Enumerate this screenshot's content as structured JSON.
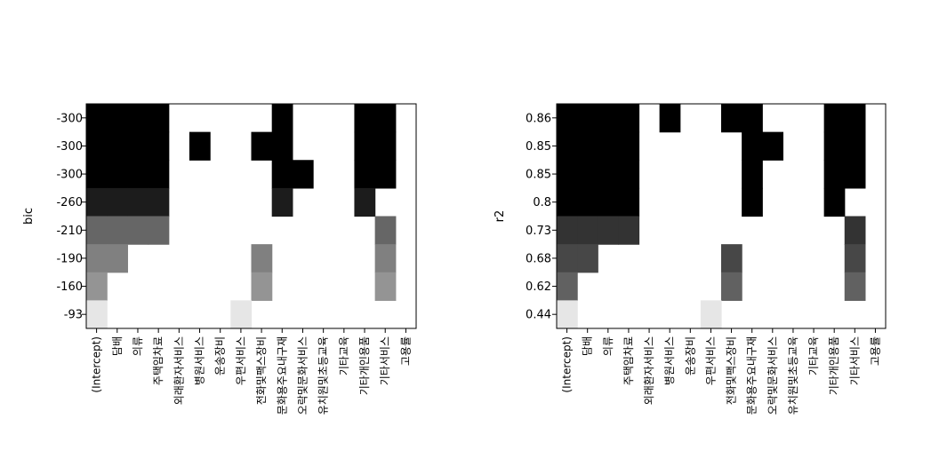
{
  "chart_data": [
    {
      "type": "heatmap",
      "ylabel": "bic",
      "categories": [
        "(Intercept)",
        "담배",
        "의류",
        "주택임차료",
        "외래환자서비스",
        "병원서비스",
        "운송장비",
        "우편서비스",
        "전화및팩스장비",
        "문화용주요내구재",
        "오락및문화서비스",
        "유치원및초등교육",
        "기타교육",
        "기타개인용품",
        "기타서비스",
        "고용률"
      ],
      "rows": [
        {
          "label": "-300",
          "cells": [
            1,
            1,
            1,
            1,
            0,
            0,
            0,
            0,
            0,
            1,
            0,
            0,
            0,
            1,
            1,
            0
          ]
        },
        {
          "label": "-300",
          "cells": [
            1,
            1,
            1,
            1,
            0,
            1,
            0,
            0,
            1,
            1,
            0,
            0,
            0,
            1,
            1,
            0
          ]
        },
        {
          "label": "-300",
          "cells": [
            1,
            1,
            1,
            1,
            0,
            0,
            0,
            0,
            0,
            1,
            1,
            0,
            0,
            1,
            1,
            0
          ]
        },
        {
          "label": "-260",
          "cells": [
            0.89,
            0.89,
            0.89,
            0.89,
            0,
            0,
            0,
            0,
            0,
            0.89,
            0,
            0,
            0,
            0.89,
            0,
            0
          ]
        },
        {
          "label": "-210",
          "cells": [
            0.6,
            0.6,
            0.6,
            0.6,
            0,
            0,
            0,
            0,
            0,
            0,
            0,
            0,
            0,
            0,
            0.6,
            0
          ]
        },
        {
          "label": "-190",
          "cells": [
            0.5,
            0.5,
            0,
            0,
            0,
            0,
            0,
            0,
            0.5,
            0,
            0,
            0,
            0,
            0,
            0.5,
            0
          ]
        },
        {
          "label": "-160",
          "cells": [
            0.42,
            0,
            0,
            0,
            0,
            0,
            0,
            0,
            0.42,
            0,
            0,
            0,
            0,
            0,
            0.42,
            0
          ]
        },
        {
          "label": "-93",
          "cells": [
            0.1,
            0,
            0,
            0,
            0,
            0,
            0,
            0.1,
            0,
            0,
            0,
            0,
            0,
            0,
            0,
            0
          ]
        }
      ]
    },
    {
      "type": "heatmap",
      "ylabel": "r2",
      "categories": [
        "(Intercept)",
        "담배",
        "의류",
        "주택임차료",
        "외래환자서비스",
        "병원서비스",
        "운송장비",
        "우편서비스",
        "전화및팩스장비",
        "문화용주요내구재",
        "오락및문화서비스",
        "유치원및초등교육",
        "기타교육",
        "기타개인용품",
        "기타서비스",
        "고용률"
      ],
      "rows": [
        {
          "label": "0.86",
          "cells": [
            1,
            1,
            1,
            1,
            0,
            1,
            0,
            0,
            1,
            1,
            0,
            0,
            0,
            1,
            1,
            0
          ]
        },
        {
          "label": "0.85",
          "cells": [
            1,
            1,
            1,
            1,
            0,
            0,
            0,
            0,
            0,
            1,
            1,
            0,
            0,
            1,
            1,
            0
          ]
        },
        {
          "label": "0.85",
          "cells": [
            1,
            1,
            1,
            1,
            0,
            0,
            0,
            0,
            0,
            1,
            0,
            0,
            0,
            1,
            1,
            0
          ]
        },
        {
          "label": "0.8",
          "cells": [
            1,
            1,
            1,
            1,
            0,
            0,
            0,
            0,
            0,
            1,
            0,
            0,
            0,
            1,
            0,
            0
          ]
        },
        {
          "label": "0.73",
          "cells": [
            0.8,
            0.8,
            0.8,
            0.8,
            0,
            0,
            0,
            0,
            0,
            0,
            0,
            0,
            0,
            0,
            0.8,
            0
          ]
        },
        {
          "label": "0.68",
          "cells": [
            0.72,
            0.72,
            0,
            0,
            0,
            0,
            0,
            0,
            0.72,
            0,
            0,
            0,
            0,
            0,
            0.72,
            0
          ]
        },
        {
          "label": "0.62",
          "cells": [
            0.62,
            0,
            0,
            0,
            0,
            0,
            0,
            0,
            0.62,
            0,
            0,
            0,
            0,
            0,
            0.62,
            0
          ]
        },
        {
          "label": "0.44",
          "cells": [
            0.1,
            0,
            0,
            0,
            0,
            0,
            0,
            0.1,
            0,
            0,
            0,
            0,
            0,
            0,
            0,
            0
          ]
        }
      ]
    }
  ]
}
